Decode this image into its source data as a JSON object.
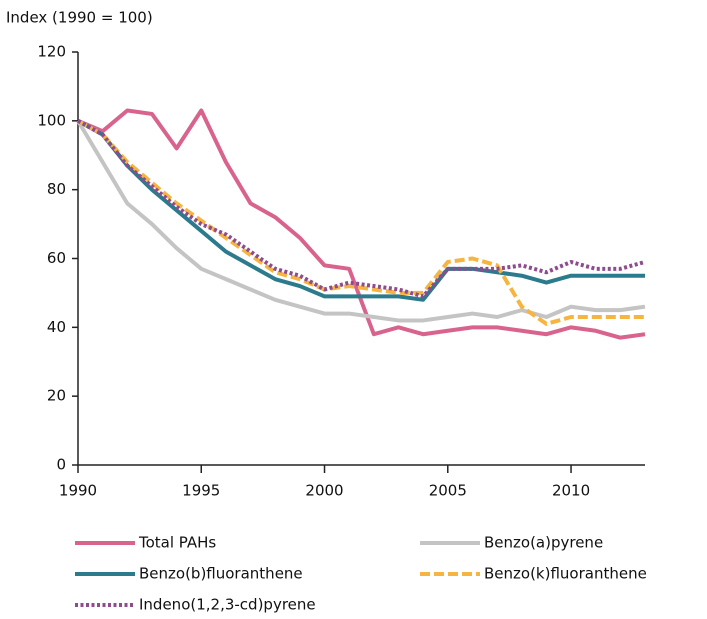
{
  "chart_data": {
    "type": "line",
    "y_axis_label": "Index (1990 = 100)",
    "x": [
      1990,
      1991,
      1992,
      1993,
      1994,
      1995,
      1996,
      1997,
      1998,
      1999,
      2000,
      2001,
      2002,
      2003,
      2004,
      2005,
      2006,
      2007,
      2008,
      2009,
      2010,
      2011,
      2012,
      2013
    ],
    "series": [
      {
        "name": "Total PAHs",
        "color": "#d8648e",
        "style": "solid",
        "values": [
          100,
          97,
          103,
          102,
          92,
          103,
          88,
          76,
          72,
          66,
          58,
          57,
          38,
          40,
          38,
          39,
          40,
          40,
          39,
          38,
          40,
          39,
          37,
          38
        ]
      },
      {
        "name": "Benzo(a)pyrene",
        "color": "#c4c4c4",
        "style": "solid",
        "values": [
          100,
          88,
          76,
          70,
          63,
          57,
          54,
          51,
          48,
          46,
          44,
          44,
          43,
          42,
          42,
          43,
          44,
          43,
          45,
          43,
          46,
          45,
          45,
          46
        ]
      },
      {
        "name": "Benzo(b)fluoranthene",
        "color": "#2b7b8c",
        "style": "solid",
        "values": [
          100,
          96,
          87,
          80,
          74,
          68,
          62,
          58,
          54,
          52,
          49,
          49,
          49,
          49,
          48,
          57,
          57,
          56,
          55,
          53,
          55,
          55,
          55,
          55
        ]
      },
      {
        "name": "Benzo(k)fluoranthene",
        "color": "#f6b440",
        "style": "dashed",
        "values": [
          100,
          96,
          88,
          82,
          76,
          71,
          66,
          61,
          56,
          54,
          51,
          52,
          51,
          50,
          50,
          59,
          60,
          58,
          46,
          41,
          43,
          43,
          43,
          43
        ]
      },
      {
        "name": "Indeno(1,2,3-cd)pyrene",
        "color": "#8e4b8e",
        "style": "dotted",
        "values": [
          100,
          96,
          87,
          81,
          75,
          70,
          67,
          62,
          57,
          55,
          51,
          53,
          52,
          51,
          49,
          57,
          57,
          57,
          58,
          56,
          59,
          57,
          57,
          59
        ]
      }
    ],
    "xlim": [
      1990,
      2013
    ],
    "xticks": [
      1990,
      1995,
      2000,
      2005,
      2010
    ],
    "ylim": [
      0,
      120
    ],
    "yticks": [
      0,
      20,
      40,
      60,
      80,
      100,
      120
    ],
    "grid": false
  }
}
